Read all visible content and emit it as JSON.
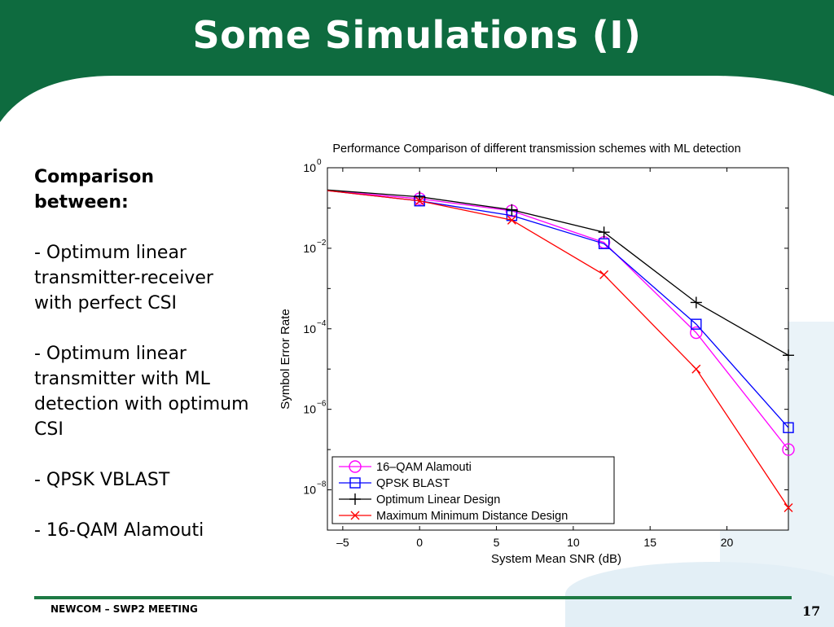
{
  "slide": {
    "title": "Some Simulations (I)",
    "footer_left": "NEWCOM – SWP2 MEETING",
    "page_number": "17",
    "header_color": "#0e6b3f"
  },
  "sidebar": {
    "heading": "Comparison between:",
    "items": [
      "- Optimum linear transmitter-receiver with perfect CSI",
      "- Optimum linear transmitter with ML detection with optimum CSI",
      "- QPSK VBLAST",
      "- 16-QAM Alamouti"
    ]
  },
  "chart_data": {
    "type": "line",
    "title": "Performance Comparison of different transmission schemes with ML detection",
    "xlabel": "System Mean SNR (dB)",
    "ylabel": "Symbol Error Rate",
    "y_scale": "log",
    "xlim": [
      -6,
      24
    ],
    "ylim_exponent": [
      -9,
      0
    ],
    "x_ticks": [
      -5,
      0,
      5,
      10,
      15,
      20
    ],
    "x_tick_labels": [
      "–5",
      "0",
      "5",
      "10",
      "15",
      "20"
    ],
    "y_tick_bases": [
      "10",
      "10",
      "10",
      "10",
      "10"
    ],
    "y_tick_exponents": [
      "0",
      "−2",
      "−4",
      "−6",
      "−8"
    ],
    "y_tick_values": [
      0,
      -2,
      -4,
      -6,
      -8
    ],
    "grid": true,
    "legend_position": "bottom-left",
    "series": [
      {
        "name": "16–QAM Alamouti",
        "color": "#ff00ff",
        "marker": "circle",
        "x": [
          -6,
          0,
          6,
          12,
          18,
          24
        ],
        "y": [
          0.27,
          0.17,
          0.085,
          0.014,
          8e-05,
          1e-07
        ]
      },
      {
        "name": "QPSK BLAST",
        "color": "#0000ff",
        "marker": "square",
        "x": [
          -6,
          0,
          6,
          12,
          18,
          24
        ],
        "y": [
          0.27,
          0.15,
          0.065,
          0.013,
          0.00013,
          3.5e-07
        ]
      },
      {
        "name": "Optimum Linear Design",
        "color": "#000000",
        "marker": "plus",
        "x": [
          -6,
          0,
          6,
          12,
          18,
          24
        ],
        "y": [
          0.28,
          0.19,
          0.09,
          0.025,
          0.00045,
          2.2e-05
        ]
      },
      {
        "name": "Maximum Minimum Distance Design",
        "color": "#ff0000",
        "marker": "x",
        "x": [
          -6,
          0,
          6,
          12,
          18,
          24
        ],
        "y": [
          0.27,
          0.15,
          0.05,
          0.0022,
          1e-05,
          3.6e-09
        ]
      }
    ]
  }
}
